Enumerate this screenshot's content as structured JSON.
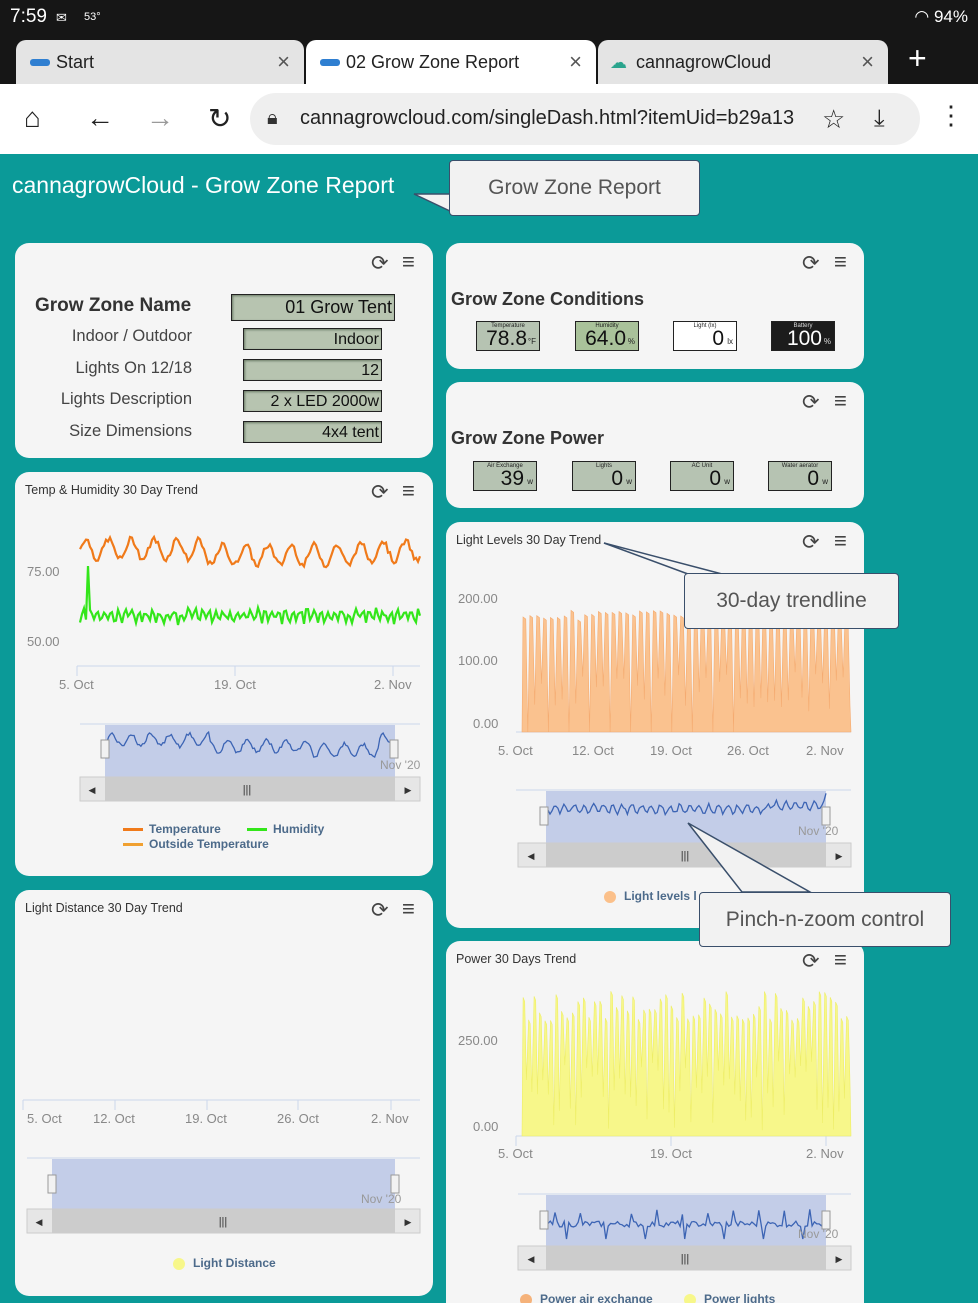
{
  "status_bar": {
    "time": "7:59",
    "temperature": "53°",
    "battery": "94%"
  },
  "tabs": [
    {
      "label": "Start"
    },
    {
      "label": "02 Grow Zone Report"
    },
    {
      "label": "cannagrowCloud"
    }
  ],
  "address_bar": {
    "url": "cannagrowcloud.com/singleDash.html?itemUid=b29a13"
  },
  "page": {
    "title": "cannagrowCloud - Grow Zone Report"
  },
  "callouts": {
    "report": "Grow Zone Report",
    "trendline": "30-day trendline",
    "zoom": "Pinch-n-zoom control"
  },
  "zone_info": {
    "name_label": "Grow Zone Name",
    "name_value": "01 Grow Tent",
    "fields": [
      {
        "label": "Indoor / Outdoor",
        "value": "Indoor"
      },
      {
        "label": "Lights On 12/18",
        "value": "12"
      },
      {
        "label": "Lights Description",
        "value": "2 x LED 2000w"
      },
      {
        "label": "Size Dimensions",
        "value": "4x4 tent"
      }
    ]
  },
  "conditions": {
    "title": "Grow Zone Conditions",
    "gauges": [
      {
        "label": "Temperature",
        "value": "78.8",
        "unit": "°F",
        "bg": "#b6c3b2"
      },
      {
        "label": "Humidity",
        "value": "64.0",
        "unit": "%",
        "bg": "#a9c29a"
      },
      {
        "label": "Light (lx)",
        "value": "0",
        "unit": "lx",
        "bg": "#ffffff"
      },
      {
        "label": "Battery",
        "value": "100",
        "unit": "%",
        "bg": "#1c1c1c"
      }
    ]
  },
  "power": {
    "title": "Grow Zone Power",
    "gauges": [
      {
        "label": "Air Exchange",
        "value": "39",
        "unit": "w"
      },
      {
        "label": "Lights",
        "value": "0",
        "unit": "w"
      },
      {
        "label": "AC Unit",
        "value": "0",
        "unit": "w"
      },
      {
        "label": "Water aerator",
        "value": "0",
        "unit": "w"
      }
    ]
  },
  "temp_chart": {
    "title": "Temp & Humidity 30 Day Trend",
    "y_ticks": [
      "75.00",
      "50.00"
    ],
    "x_ticks": [
      "5. Oct",
      "19. Oct",
      "2. Nov"
    ],
    "navigator_label": "Nov '20",
    "legend": [
      {
        "name": "Temperature",
        "color": "#f07a1a"
      },
      {
        "name": "Humidity",
        "color": "#33e61a"
      },
      {
        "name": "Outside Temperature",
        "color": "#f0a030"
      }
    ]
  },
  "light_chart": {
    "title": "Light Levels 30 Day Trend",
    "y_ticks": [
      "200.00",
      "100.00",
      "0.00"
    ],
    "x_ticks": [
      "5. Oct",
      "12. Oct",
      "19. Oct",
      "26. Oct",
      "2. Nov"
    ],
    "navigator_label": "Nov '20",
    "legend": [
      {
        "name": "Light levels l",
        "color": "#fbc08a"
      }
    ]
  },
  "distance_chart": {
    "title": "Light Distance 30 Day Trend",
    "x_ticks": [
      "5. Oct",
      "12. Oct",
      "19. Oct",
      "26. Oct",
      "2. Nov"
    ],
    "navigator_label": "Nov '20",
    "legend": [
      {
        "name": "Light Distance",
        "color": "#f7f78a"
      }
    ]
  },
  "power_chart": {
    "title": "Power 30 Days Trend",
    "y_ticks": [
      "250.00",
      "0.00"
    ],
    "x_ticks": [
      "5. Oct",
      "19. Oct",
      "2. Nov"
    ],
    "navigator_label": "Nov '20",
    "legend": [
      {
        "name": "Power air exchange",
        "color": "#f5b27a"
      },
      {
        "name": "Power lights",
        "color": "#f7f78a"
      }
    ]
  },
  "chart_data": [
    {
      "type": "line",
      "title": "Temp & Humidity 30 Day Trend",
      "x_range": [
        "2020-10-01",
        "2020-11-04"
      ],
      "ylim": [
        40,
        90
      ],
      "series": [
        {
          "name": "Temperature",
          "approx_range": [
            78,
            86
          ]
        },
        {
          "name": "Humidity",
          "approx_range": [
            53,
            68
          ]
        }
      ]
    },
    {
      "type": "area",
      "title": "Light Levels 30 Day Trend",
      "ylim": [
        0,
        200
      ],
      "series": [
        {
          "name": "Light levels",
          "approx_max": 195
        }
      ]
    },
    {
      "type": "line",
      "title": "Light Distance 30 Day Trend",
      "series": [
        {
          "name": "Light Distance",
          "values": []
        }
      ]
    },
    {
      "type": "area",
      "title": "Power 30 Days Trend",
      "ylim": [
        0,
        400
      ],
      "series": [
        {
          "name": "Power air exchange"
        },
        {
          "name": "Power lights",
          "approx_max": 390
        }
      ]
    }
  ]
}
